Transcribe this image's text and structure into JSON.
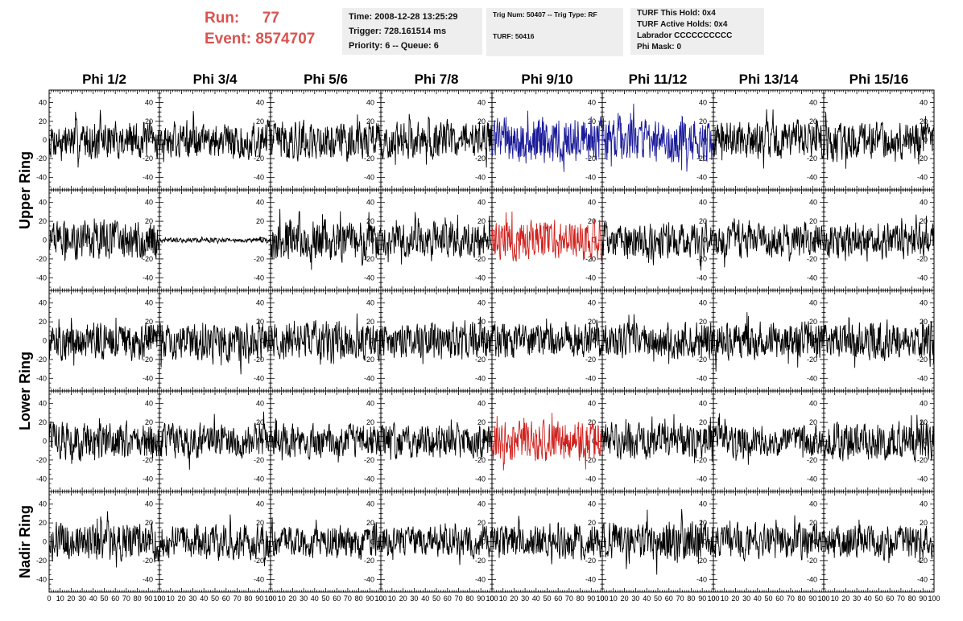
{
  "header": {
    "run_label": "Run:",
    "run_value": "77",
    "event_label": "Event:",
    "event_value": "8574707"
  },
  "info": {
    "time": "Time: 2008-12-28 13:25:29",
    "trigger": "Trigger: 728.161514 ms",
    "priority": "Priority: 6 -- Queue: 6",
    "trig_num": "Trig Num: 50407 -- Trig Type: RF",
    "turf_num": "TURF: 50416",
    "turf_hold": "TURF This Hold: 0x4",
    "turf_active": "TURF Active Holds: 0x4",
    "labrador": "Labrador CCCCCCCCCC",
    "phi_mask": "Phi Mask: 0"
  },
  "colors": {
    "trace": "#000000",
    "highlight_blue": "#1a1a9a",
    "highlight_red": "#d0201c",
    "header_red": "#d9534f",
    "info_bg": "#eeeeee"
  },
  "chart_data": {
    "type": "line",
    "column_titles": [
      "Phi 1/2",
      "Phi 3/4",
      "Phi 5/6",
      "Phi 7/8",
      "Phi 9/10",
      "Phi 11/12",
      "Phi 13/14",
      "Phi 15/16"
    ],
    "row_titles": [
      "Upper Ring",
      "Lower Ring",
      "Nadir Ring"
    ],
    "rows": 5,
    "row_groups": [
      {
        "title": "Upper Ring",
        "rows": [
          0,
          1
        ]
      },
      {
        "title": "Lower Ring",
        "rows": [
          2,
          3
        ]
      },
      {
        "title": "Nadir Ring",
        "rows": [
          4
        ]
      }
    ],
    "xlim": [
      0,
      100
    ],
    "ylim": [
      -50,
      50
    ],
    "yticks": [
      -40,
      -20,
      0,
      20,
      40
    ],
    "xticks": [
      0,
      10,
      20,
      30,
      40,
      50,
      60,
      70,
      80,
      90,
      100
    ],
    "xtick_labels": [
      "0",
      "10",
      "20",
      "30",
      "40",
      "50",
      "60",
      "70",
      "80",
      "90",
      "100"
    ],
    "ytick_labels": [
      "40",
      "20",
      "0",
      "-20",
      "-40"
    ],
    "samples_per_trace": 260,
    "grid": false,
    "amplitudes": [
      [
        24,
        24,
        25,
        24,
        30,
        28,
        24,
        24
      ],
      [
        24,
        3,
        26,
        22,
        26,
        22,
        22,
        22
      ],
      [
        24,
        24,
        24,
        22,
        22,
        22,
        24,
        24
      ],
      [
        24,
        22,
        22,
        22,
        26,
        22,
        20,
        24
      ],
      [
        24,
        22,
        20,
        20,
        22,
        26,
        22,
        22
      ]
    ],
    "highlights": [
      {
        "row": 0,
        "col": 4,
        "color": "blue"
      },
      {
        "row": 0,
        "col": 5,
        "color": "blue"
      },
      {
        "row": 1,
        "col": 4,
        "color": "red"
      },
      {
        "row": 3,
        "col": 4,
        "color": "red"
      }
    ]
  }
}
